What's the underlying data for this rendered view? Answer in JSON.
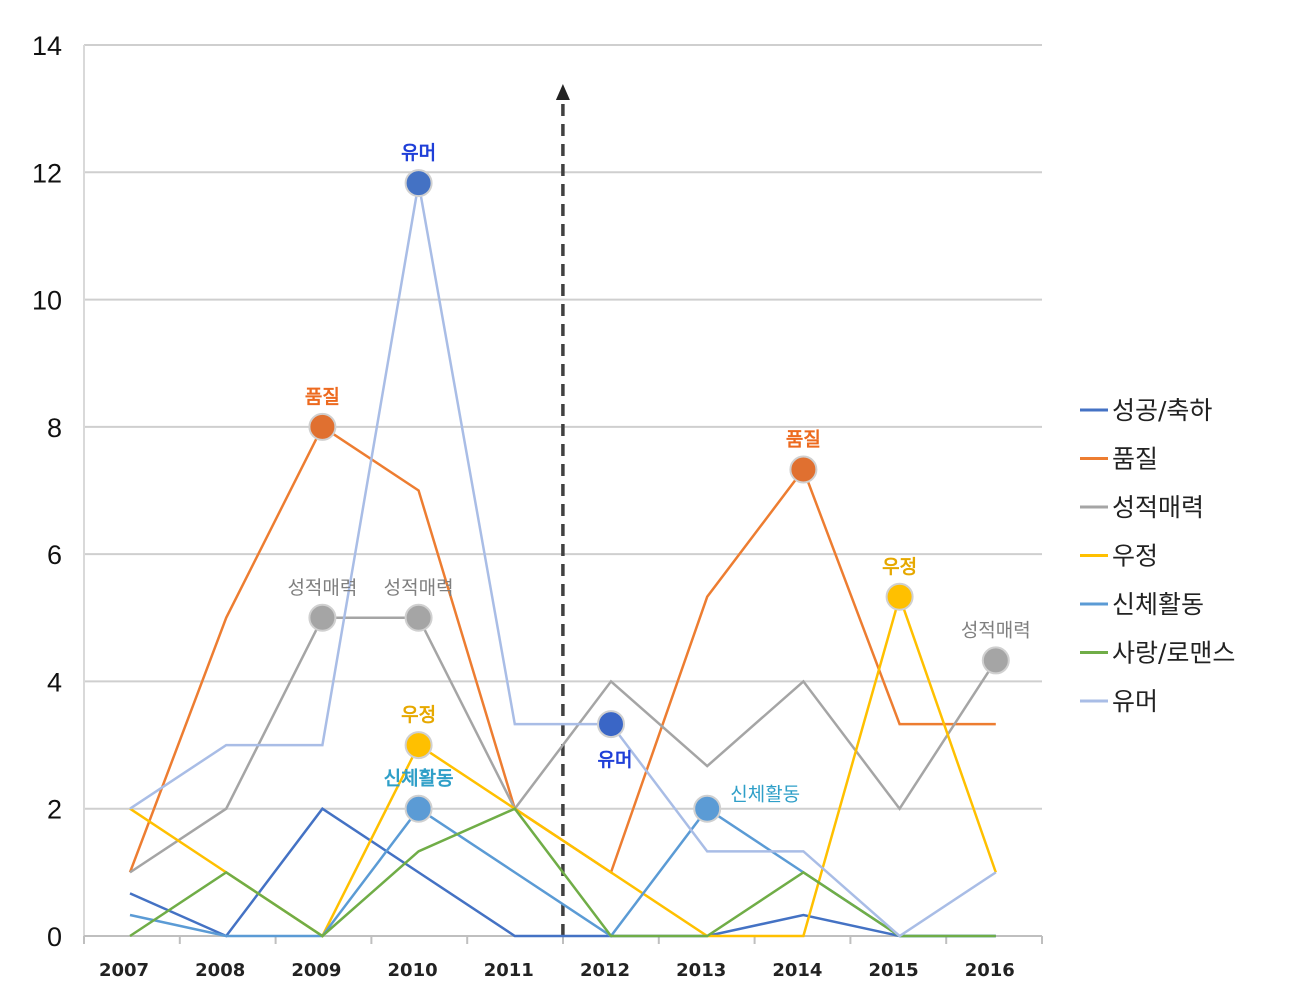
{
  "chart_data": {
    "type": "line",
    "title": "",
    "xlabel": "",
    "ylabel": "",
    "x": [
      "2007",
      "2008",
      "2009",
      "2010",
      "2011",
      "2012",
      "2013",
      "2014",
      "2015",
      "2016"
    ],
    "ylim": [
      0,
      14
    ],
    "yticks": [
      "0",
      "2",
      "4",
      "6",
      "8",
      "10",
      "12",
      "14"
    ],
    "grid": "horizontal",
    "legend_position": "right",
    "divider_after": "2011",
    "series": [
      {
        "name": "성공/축하",
        "color": "#4472c4",
        "values": [
          0.67,
          0,
          2,
          1,
          0,
          0,
          0,
          0.33,
          0,
          0
        ]
      },
      {
        "name": "품질",
        "color": "#ed7d31",
        "values": [
          1,
          5,
          8,
          7,
          2,
          1,
          5.33,
          7.33,
          3.33,
          3.33
        ]
      },
      {
        "name": "성적매력",
        "color": "#a5a5a5",
        "values": [
          1,
          2,
          5,
          5,
          2,
          4,
          2.67,
          4,
          2,
          4.33
        ]
      },
      {
        "name": "우정",
        "color": "#ffc000",
        "values": [
          2,
          1,
          0,
          3,
          2,
          1,
          0,
          0,
          5.33,
          1
        ]
      },
      {
        "name": "신체활동",
        "color": "#5b9bd5",
        "values": [
          0.33,
          0,
          0,
          2,
          1,
          0,
          2,
          1,
          0,
          0
        ]
      },
      {
        "name": "사랑/로맨스",
        "color": "#70ad47",
        "values": [
          0,
          1,
          0,
          1.33,
          2,
          0,
          0,
          1,
          0,
          0
        ]
      },
      {
        "name": "유머",
        "color": "#a9bde6",
        "values": [
          2,
          3,
          3,
          11.83,
          3.33,
          3.33,
          1.33,
          1.33,
          0,
          1
        ]
      }
    ],
    "annotations": [
      {
        "series": 6,
        "x": "2010",
        "y": 11.83,
        "text": "유머",
        "color": "#1f3fd8",
        "marker": "#4472c4",
        "pos": "above",
        "bold": true
      },
      {
        "series": 1,
        "x": "2009",
        "y": 8,
        "text": "품질",
        "color": "#ed6a1f",
        "marker": "#e07030",
        "pos": "above",
        "bold": true
      },
      {
        "series": 2,
        "x": "2009",
        "y": 5,
        "text": "성적매력",
        "color": "#7f7f7f",
        "marker": "#a5a5a5",
        "pos": "above",
        "bold": false
      },
      {
        "series": 2,
        "x": "2010",
        "y": 5,
        "text": "성적매력",
        "color": "#7f7f7f",
        "marker": "#a5a5a5",
        "pos": "above",
        "bold": false
      },
      {
        "series": 3,
        "x": "2010",
        "y": 3,
        "text": "우정",
        "color": "#e6a800",
        "marker": "#ffc000",
        "pos": "above",
        "bold": true
      },
      {
        "series": 4,
        "x": "2010",
        "y": 2,
        "text": "신체활동",
        "color": "#2f9fc8",
        "marker": "#5b9bd5",
        "pos": "above",
        "bold": true
      },
      {
        "series": 6,
        "x": "2012",
        "y": 3.33,
        "text": "유머",
        "color": "#1f3fd8",
        "marker": "#3a66c6",
        "pos": "below",
        "bold": true
      },
      {
        "series": 4,
        "x": "2013",
        "y": 2,
        "text": "신체활동",
        "color": "#2f9fc8",
        "marker": "#5b9bd5",
        "pos": "right-above",
        "bold": false
      },
      {
        "series": 1,
        "x": "2014",
        "y": 7.33,
        "text": "품질",
        "color": "#ed6a1f",
        "marker": "#e07030",
        "pos": "above",
        "bold": true
      },
      {
        "series": 3,
        "x": "2015",
        "y": 5.33,
        "text": "우정",
        "color": "#e6a800",
        "marker": "#ffc000",
        "pos": "above",
        "bold": true
      },
      {
        "series": 2,
        "x": "2016",
        "y": 4.33,
        "text": "성적매력",
        "color": "#7f7f7f",
        "marker": "#a5a5a5",
        "pos": "above",
        "bold": false
      }
    ]
  }
}
